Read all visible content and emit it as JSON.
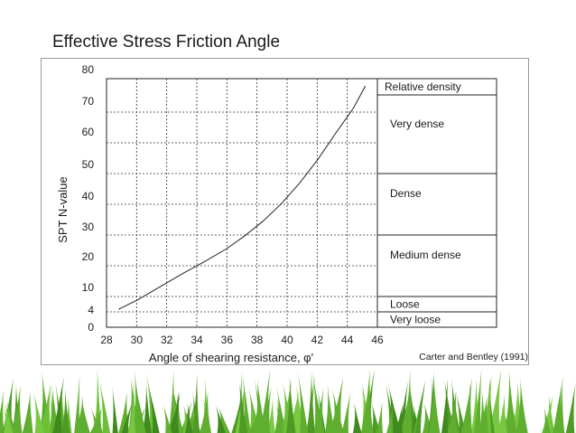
{
  "slide": {
    "title": "Effective Stress Friction Angle",
    "grass_color": "#5fae2f"
  },
  "chart_data": {
    "type": "line",
    "title": "Effective Stress Friction Angle",
    "xlabel": "Angle of shearing resistance, φ'",
    "ylabel": "SPT N-value",
    "source": "Carter and Bentley (1991)",
    "xlim": [
      28,
      46
    ],
    "x_ticks": [
      28,
      30,
      32,
      34,
      36,
      38,
      40,
      42,
      44,
      46
    ],
    "y_ticks": [
      0,
      4,
      10,
      20,
      30,
      40,
      50,
      60,
      70,
      80
    ],
    "grid": true,
    "series": [
      {
        "x": [
          28.8,
          30,
          31.5,
          33,
          34.5,
          36,
          37.2,
          38.4,
          39.6,
          40.8,
          42,
          43.2,
          44.4,
          45.2
        ],
        "y": [
          5,
          8.5,
          13,
          17.3,
          21.3,
          25.6,
          29.8,
          34.5,
          40.1,
          46.7,
          54.3,
          62.9,
          71.1,
          77.8
        ]
      }
    ],
    "density_table": {
      "header": "Relative density",
      "rows": [
        {
          "label": "Very dense",
          "from": 50,
          "to": 80
        },
        {
          "label": "Dense",
          "from": 30,
          "to": 50
        },
        {
          "label": "Medium dense",
          "from": 10,
          "to": 30
        },
        {
          "label": "Loose",
          "from": 4,
          "to": 10
        },
        {
          "label": "Very loose",
          "from": 0,
          "to": 4
        }
      ]
    }
  }
}
